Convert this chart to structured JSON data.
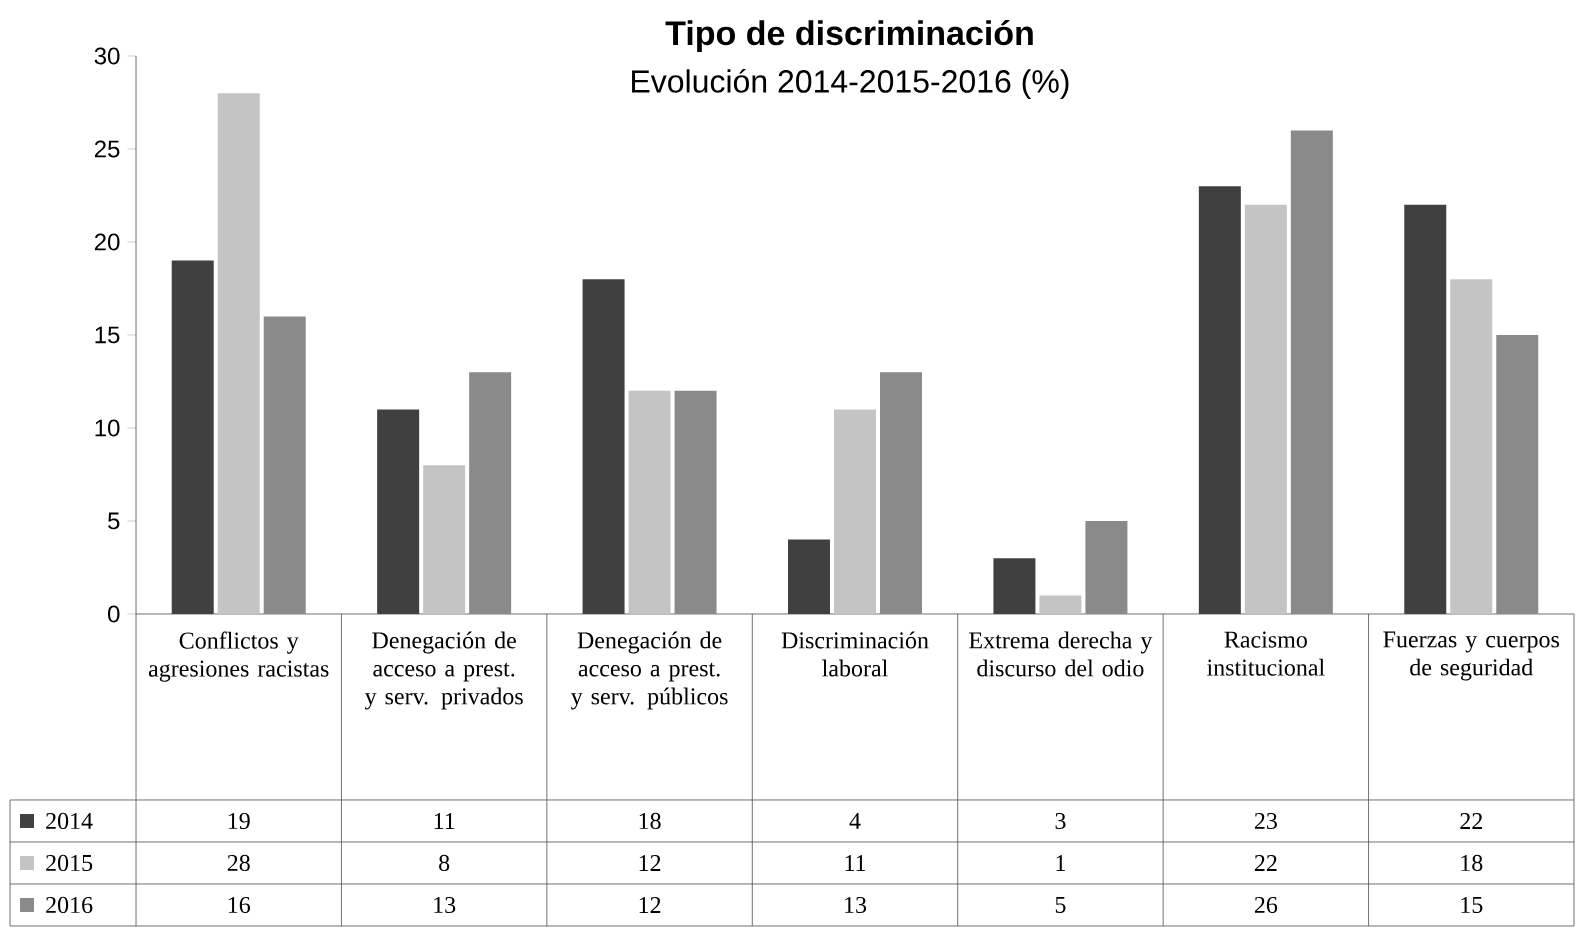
{
  "chart_data": {
    "type": "bar",
    "title": "Tipo de discriminación",
    "subtitle": "Evolución 2014-2015-2016 (%)",
    "categories": [
      "Conflictos y agresiones racistas",
      "Denegación de acceso a prest. y serv. privados",
      "Denegación de acceso a prest. y serv. públicos",
      "Discriminación laboral",
      "Extrema derecha y discurso del odio",
      "Racismo institucional",
      "Fuerzas y cuerpos de seguridad"
    ],
    "series": [
      {
        "name": "2014",
        "color": "#404040",
        "values": [
          19,
          11,
          18,
          4,
          3,
          23,
          22
        ]
      },
      {
        "name": "2015",
        "color": "#c4c4c4",
        "values": [
          28,
          8,
          12,
          11,
          1,
          22,
          18
        ]
      },
      {
        "name": "2016",
        "color": "#8a8a8a",
        "values": [
          16,
          13,
          12,
          13,
          5,
          26,
          15
        ]
      }
    ],
    "ylim": [
      0,
      30
    ],
    "yticks": [
      0,
      5,
      10,
      15,
      20,
      25,
      30
    ],
    "grid": false,
    "legend": "bottom",
    "data_labels": true
  }
}
